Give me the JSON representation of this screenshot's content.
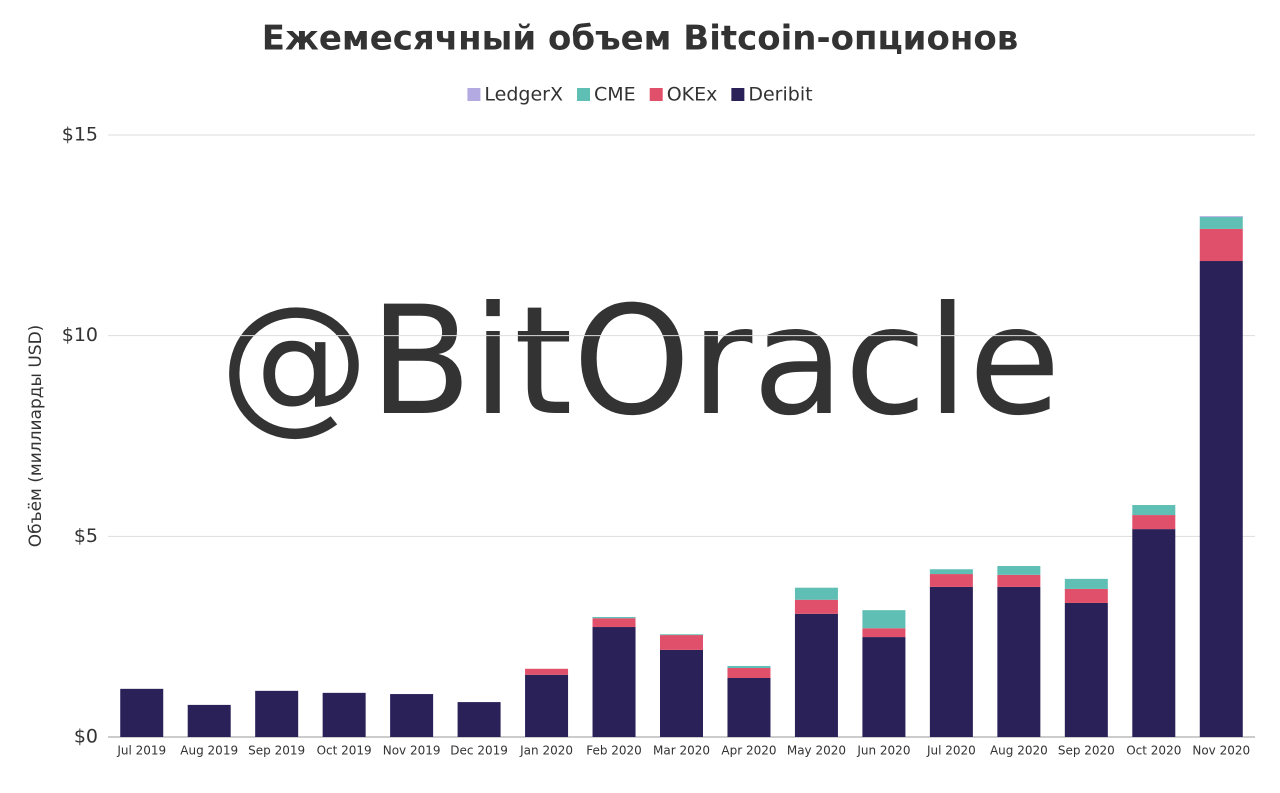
{
  "chart_data": {
    "type": "stacked-bar",
    "title": "Ежемесячный объем Bitcoin-опционов",
    "watermark": "@BitOracle",
    "y_label": "Объём (миллиарды USD)",
    "categories": [
      "Jul 2019",
      "Aug 2019",
      "Sep 2019",
      "Oct 2019",
      "Nov 2019",
      "Dec 2019",
      "Jan 2020",
      "Feb 2020",
      "Mar 2020",
      "Apr 2020",
      "May 2020",
      "Jun 2020",
      "Jul 2020",
      "Aug 2020",
      "Sep 2020",
      "Oct 2020",
      "Nov 2020"
    ],
    "series": [
      {
        "name": "LedgerX",
        "color": "#b4aae2",
        "values": [
          0,
          0,
          0,
          0,
          0,
          0,
          0,
          0,
          0,
          0,
          0,
          0,
          0,
          0,
          0,
          0,
          0.02
        ]
      },
      {
        "name": "CME",
        "color": "#5fbfb5",
        "values": [
          0,
          0,
          0,
          0,
          0,
          0,
          0,
          0.03,
          0.02,
          0.05,
          0.3,
          0.45,
          0.12,
          0.22,
          0.25,
          0.25,
          0.3
        ]
      },
      {
        "name": "OKEx",
        "color": "#e0506a",
        "values": [
          0,
          0,
          0,
          0,
          0,
          0,
          0.15,
          0.22,
          0.37,
          0.25,
          0.35,
          0.22,
          0.32,
          0.3,
          0.35,
          0.35,
          0.8
        ]
      },
      {
        "name": "Deribit",
        "color": "#2a2158",
        "values": [
          1.2,
          0.8,
          1.15,
          1.1,
          1.07,
          0.87,
          1.55,
          2.74,
          2.17,
          1.47,
          3.07,
          2.49,
          3.74,
          3.74,
          3.34,
          5.18,
          11.86
        ]
      }
    ],
    "ylim": [
      0,
      15
    ],
    "yticks": [
      {
        "value": 0,
        "label": "$0"
      },
      {
        "value": 5,
        "label": "$5"
      },
      {
        "value": 10,
        "label": "$10"
      },
      {
        "value": 15,
        "label": "$15"
      }
    ],
    "grid": true,
    "legend": "top"
  }
}
